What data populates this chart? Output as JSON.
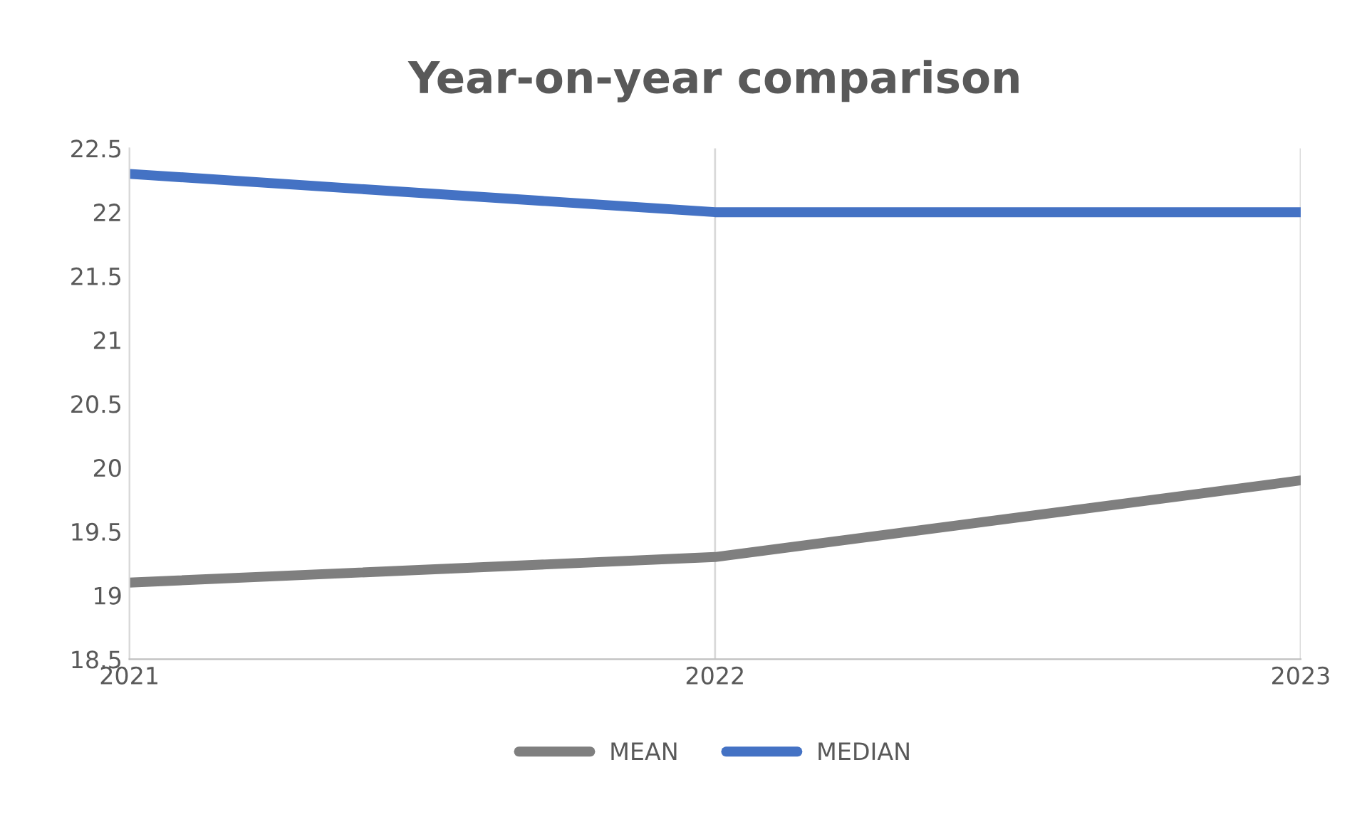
{
  "chart_data": {
    "type": "line",
    "title": "Year-on-year comparison",
    "x": [
      2021,
      2022,
      2023
    ],
    "xlim": [
      2021,
      2023
    ],
    "xticks": [
      2021,
      2022,
      2023
    ],
    "ylim": [
      18.5,
      22.5
    ],
    "yticks": [
      18.5,
      19,
      19.5,
      20,
      20.5,
      21,
      21.5,
      22,
      22.5
    ],
    "series": [
      {
        "name": "MEAN",
        "color": "#7f7f7f",
        "values": [
          19.1,
          19.3,
          19.9
        ]
      },
      {
        "name": "MEDIAN",
        "color": "#4472c4",
        "values": [
          22.3,
          22.0,
          22.0
        ]
      }
    ],
    "grid": "x",
    "legend": "bottom",
    "marker": "none",
    "line_style": "solid"
  }
}
